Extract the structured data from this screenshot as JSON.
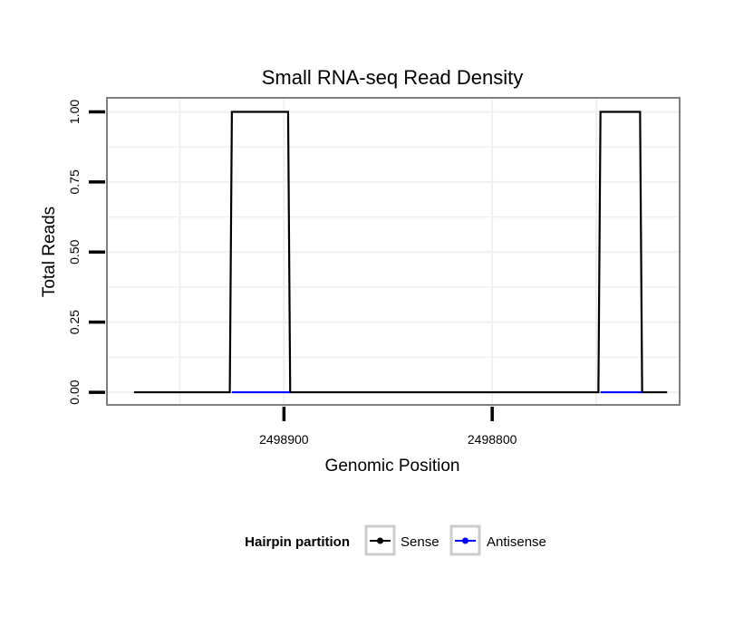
{
  "chart_data": {
    "type": "line",
    "title": "Small RNA-seq Read Density",
    "xlabel": "Genomic Position",
    "ylabel": "Total Reads",
    "x_axis_reversed": true,
    "xlim": [
      2498985,
      2498710
    ],
    "ylim": [
      -0.045,
      1.05
    ],
    "y_ticks": [
      0,
      0.25,
      0.5,
      0.75,
      1
    ],
    "y_tick_labels": [
      "0.00",
      "0.25",
      "0.50",
      "0.75",
      "1.00"
    ],
    "x_ticks": [
      2498900,
      2498800
    ],
    "x_tick_labels": [
      "2498900",
      "2498800"
    ],
    "grid": true,
    "legend": {
      "title": "Hairpin partition",
      "position": "bottom",
      "entries": [
        "Sense",
        "Antisense"
      ]
    },
    "series": [
      {
        "name": "Sense",
        "color": "#000000",
        "x": [
          2498972,
          2498926,
          2498925,
          2498898,
          2498897,
          2498749,
          2498748,
          2498729,
          2498728,
          2498716
        ],
        "y": [
          0,
          0,
          1,
          1,
          0,
          0,
          1,
          1,
          0,
          0
        ]
      },
      {
        "name": "Antisense",
        "color": "#0000ff",
        "x": [
          2498925,
          2498897,
          2498748,
          2498728
        ],
        "y": [
          0,
          0,
          0,
          0
        ],
        "segments": [
          [
            0,
            1
          ],
          [
            2,
            3
          ]
        ]
      }
    ]
  }
}
